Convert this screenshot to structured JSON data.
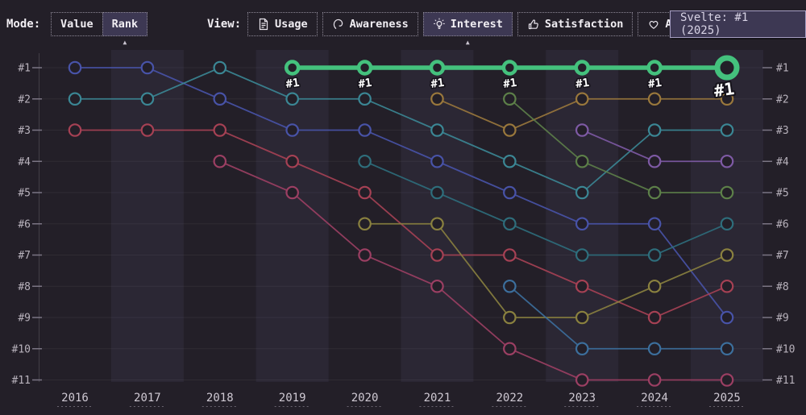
{
  "toolbar": {
    "mode": {
      "label": "Mode:",
      "options": [
        {
          "label": "Value",
          "selected": false
        },
        {
          "label": "Rank",
          "selected": true
        }
      ]
    },
    "view": {
      "label": "View:",
      "options": [
        {
          "label": "Usage",
          "icon": "document-icon",
          "selected": false
        },
        {
          "label": "Awareness",
          "icon": "ear-icon",
          "selected": false
        },
        {
          "label": "Interest",
          "icon": "lightbulb-icon",
          "selected": true
        },
        {
          "label": "Satisfaction",
          "icon": "thumbsup-icon",
          "selected": false
        },
        {
          "label": "Appreciation",
          "icon": "heart-icon",
          "selected": false
        }
      ]
    }
  },
  "tooltip": {
    "text": "Svelte: #1 (2025)"
  },
  "colors": {
    "background": "#231f28",
    "band": "#2b2734",
    "selected_bg": "#3d3853",
    "highlight_green": "#44c17d",
    "axis_label": "#b8b2bc",
    "year_label": "#cfc9d3"
  },
  "chart_data": {
    "type": "line",
    "subtype": "rank-bump-chart",
    "x": [
      2016,
      2017,
      2018,
      2019,
      2020,
      2021,
      2022,
      2023,
      2024,
      2025
    ],
    "y_axis_labels": [
      "#1",
      "#2",
      "#3",
      "#4",
      "#5",
      "#6",
      "#7",
      "#8",
      "#9",
      "#10",
      "#11"
    ],
    "y_axis_sides": "both",
    "grid": true,
    "legend": "none",
    "bands_on_years": [
      2017,
      2019,
      2021,
      2023,
      2025
    ],
    "highlighted_series": "Svelte",
    "highlight_point_label": "#1",
    "series": [
      {
        "name": "series-indigo",
        "color": "#4853a8",
        "ranks": [
          1,
          1,
          2,
          3,
          3,
          4,
          5,
          6,
          6,
          9
        ]
      },
      {
        "name": "series-teal",
        "color": "#3b8795",
        "ranks": [
          2,
          2,
          1,
          2,
          2,
          3,
          4,
          5,
          3,
          3
        ]
      },
      {
        "name": "series-red",
        "color": "#a64154",
        "ranks": [
          3,
          3,
          3,
          4,
          5,
          7,
          7,
          8,
          9,
          8
        ]
      },
      {
        "name": "series-maroon",
        "color": "#9c3f63",
        "ranks": [
          null,
          null,
          4,
          5,
          7,
          8,
          10,
          11,
          11,
          11
        ]
      },
      {
        "name": "series-dark-teal",
        "color": "#2e6e7c",
        "ranks": [
          null,
          null,
          null,
          null,
          4,
          5,
          6,
          7,
          7,
          6
        ]
      },
      {
        "name": "series-olive",
        "color": "#8a813f",
        "ranks": [
          null,
          null,
          null,
          null,
          6,
          6,
          9,
          9,
          8,
          7
        ]
      },
      {
        "name": "series-amber",
        "color": "#9a783c",
        "ranks": [
          null,
          null,
          null,
          null,
          null,
          2,
          3,
          2,
          2,
          2
        ]
      },
      {
        "name": "series-moss",
        "color": "#5d8049",
        "ranks": [
          null,
          null,
          null,
          null,
          null,
          null,
          2,
          4,
          5,
          5
        ]
      },
      {
        "name": "series-steel-blue",
        "color": "#3c6f9d",
        "ranks": [
          null,
          null,
          null,
          null,
          null,
          null,
          8,
          10,
          10,
          10
        ]
      },
      {
        "name": "series-purple",
        "color": "#7e5aa5",
        "ranks": [
          null,
          null,
          null,
          null,
          null,
          null,
          null,
          3,
          4,
          4
        ]
      },
      {
        "name": "Svelte",
        "color": "#44c17d",
        "ranks": [
          null,
          null,
          null,
          1,
          1,
          1,
          1,
          1,
          1,
          1
        ],
        "highlight": true
      }
    ]
  }
}
